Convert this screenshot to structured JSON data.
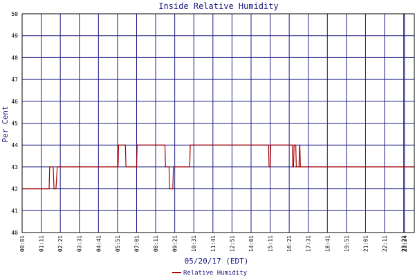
{
  "chart_data": {
    "type": "line",
    "title": "Inside Relative Humidity",
    "xlabel": "05/20/17 (EDT)",
    "ylabel": "Per Cent",
    "ylim": [
      40,
      50
    ],
    "yticks": [
      40,
      41,
      42,
      43,
      44,
      45,
      46,
      47,
      48,
      49,
      50
    ],
    "xticks": [
      "00:01",
      "01:11",
      "02:21",
      "03:31",
      "04:41",
      "05:51",
      "07:01",
      "08:11",
      "09:21",
      "10:31",
      "11:41",
      "12:51",
      "14:01",
      "15:11",
      "16:21",
      "17:31",
      "18:41",
      "19:51",
      "21:01",
      "22:11",
      "23:21",
      "23:24"
    ],
    "grid": true,
    "legend_position": "bottom-center",
    "colors": {
      "line": "#aa0000",
      "grid": "#1a1a80",
      "frame": "#000000",
      "title": "#1a1a80"
    },
    "series": [
      {
        "name": "Relative Humidity",
        "x": [
          "00:01",
          "01:40",
          "01:42",
          "01:55",
          "01:58",
          "02:05",
          "02:10",
          "02:20",
          "02:22",
          "05:53",
          "05:55",
          "06:20",
          "06:22",
          "07:01",
          "07:03",
          "07:05",
          "07:07",
          "08:45",
          "08:47",
          "09:00",
          "09:02",
          "09:14",
          "09:16",
          "10:16",
          "10:18",
          "15:05",
          "15:07",
          "15:11",
          "15:13",
          "16:32",
          "16:34",
          "16:37",
          "16:39",
          "16:45",
          "16:47",
          "16:57",
          "16:59",
          "17:00",
          "17:02",
          "23:59"
        ],
        "values": [
          42,
          42,
          43,
          43,
          42,
          42,
          43,
          43,
          43,
          43,
          44,
          44,
          43,
          43,
          44,
          44,
          44,
          44,
          43,
          43,
          42,
          42,
          43,
          43,
          44,
          44,
          43,
          43,
          44,
          44,
          43,
          43,
          44,
          44,
          43,
          43,
          44,
          44,
          43,
          43
        ]
      }
    ]
  }
}
